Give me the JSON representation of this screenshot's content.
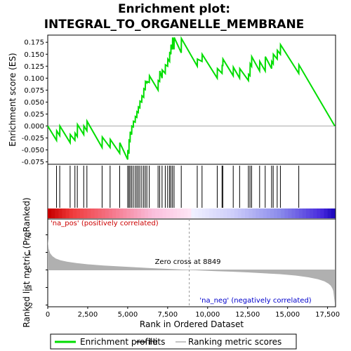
{
  "title_line1": "Enrichment plot:",
  "title_line2": "INTEGRAL_TO_ORGANELLE_MEMBRANE",
  "colors": {
    "enrichment_line": "#00dd00",
    "hits": "#000000",
    "metric_fill": "#b0b0b0",
    "pos_label": "#cc0000",
    "neg_label": "#0000cc",
    "zero_cross_line": "#999999"
  },
  "chart_data": [
    {
      "type": "line",
      "panel": "enrichment",
      "ylabel": "Enrichment score (ES)",
      "xlim": [
        0,
        18000
      ],
      "ylim": [
        -0.08,
        0.19
      ],
      "yticks": [
        -0.075,
        -0.05,
        -0.025,
        0.0,
        0.025,
        0.05,
        0.075,
        0.1,
        0.125,
        0.15,
        0.175
      ],
      "ytick_labels": [
        "-0.075",
        "-0.050",
        "-0.025",
        "0.000",
        "0.025",
        "0.050",
        "0.075",
        "0.100",
        "0.125",
        "0.150",
        "0.175"
      ],
      "series": [
        {
          "name": "Enrichment profile",
          "x": [
            0,
            550,
            560,
            750,
            760,
            1400,
            1410,
            1700,
            1710,
            1850,
            1860,
            2250,
            2260,
            2450,
            2460,
            3400,
            3410,
            3900,
            3910,
            4500,
            4510,
            5000,
            5010,
            5080,
            5090,
            5150,
            5160,
            5250,
            5260,
            5350,
            5360,
            5470,
            5480,
            5570,
            5580,
            5660,
            5670,
            5760,
            5770,
            5880,
            5890,
            6000,
            6010,
            6100,
            6110,
            6200,
            6210,
            6350,
            6360,
            6900,
            6910,
            7000,
            7010,
            7150,
            7160,
            7350,
            7360,
            7500,
            7510,
            7620,
            7630,
            7700,
            7710,
            7800,
            7810,
            7900,
            7910,
            8350,
            8360,
            9350,
            9360,
            9650,
            9660,
            10600,
            10610,
            10900,
            10910,
            10950,
            10960,
            11600,
            11610,
            12000,
            12010,
            12550,
            12560,
            12650,
            12660,
            12750,
            12760,
            13250,
            13260,
            13600,
            13610,
            14000,
            14010,
            14100,
            14110,
            14350,
            14360,
            14550,
            14560,
            15700,
            15710,
            17950
          ],
          "y": [
            0.0,
            -0.03,
            -0.01,
            -0.02,
            0.0,
            -0.035,
            -0.018,
            -0.03,
            -0.015,
            -0.022,
            0.003,
            -0.018,
            0.0,
            -0.01,
            0.01,
            -0.045,
            -0.023,
            -0.045,
            -0.028,
            -0.057,
            -0.035,
            -0.07,
            -0.05,
            -0.058,
            -0.03,
            -0.032,
            -0.012,
            -0.018,
            0.0,
            -0.002,
            0.01,
            0.008,
            0.02,
            0.018,
            0.03,
            0.028,
            0.04,
            0.038,
            0.052,
            0.05,
            0.063,
            0.06,
            0.078,
            0.076,
            0.093,
            0.09,
            0.093,
            0.091,
            0.105,
            0.075,
            0.095,
            0.093,
            0.115,
            0.1,
            0.117,
            0.11,
            0.128,
            0.125,
            0.14,
            0.135,
            0.155,
            0.15,
            0.17,
            0.16,
            0.185,
            0.16,
            0.185,
            0.153,
            0.183,
            0.125,
            0.14,
            0.135,
            0.15,
            0.1,
            0.12,
            0.11,
            0.128,
            0.125,
            0.14,
            0.105,
            0.123,
            0.1,
            0.12,
            0.095,
            0.108,
            0.105,
            0.13,
            0.125,
            0.145,
            0.115,
            0.135,
            0.115,
            0.145,
            0.12,
            0.135,
            0.13,
            0.15,
            0.14,
            0.158,
            0.15,
            0.17,
            0.11,
            0.128,
            0.0
          ]
        }
      ]
    },
    {
      "type": "scatter",
      "panel": "hits",
      "series": [
        {
          "name": "Hits",
          "x": [
            550,
            750,
            1400,
            1700,
            1850,
            2250,
            2450,
            3400,
            3900,
            4500,
            5000,
            5080,
            5150,
            5250,
            5350,
            5470,
            5570,
            5660,
            5760,
            5880,
            6000,
            6100,
            6200,
            6350,
            6900,
            7000,
            7150,
            7350,
            7500,
            7620,
            7700,
            7800,
            7900,
            8350,
            9350,
            9650,
            10600,
            10900,
            10950,
            11600,
            12000,
            12550,
            12650,
            12750,
            13250,
            13600,
            14000,
            14100,
            14350,
            14550,
            15700
          ]
        }
      ]
    },
    {
      "type": "area",
      "panel": "metric",
      "ylabel": "Ranked list metric (PreRanked)",
      "xlabel": "Rank in Ordered Dataset",
      "xlim": [
        0,
        18000
      ],
      "ylim": [
        -2.1,
        2.9
      ],
      "xticks": [
        0,
        2500,
        5000,
        7500,
        10000,
        12500,
        15000,
        17500
      ],
      "xtick_labels": [
        "0",
        "2,500",
        "5,000",
        "7,500",
        "10,000",
        "12,500",
        "15,000",
        "17,500"
      ],
      "yticks": [
        -2,
        -1,
        0,
        1,
        2
      ],
      "ytick_labels": [
        "-2",
        "-1",
        "0",
        "1",
        "2"
      ],
      "zero_cross": 8849,
      "zero_cross_label": "Zero cross at 8849",
      "pos_label": "'na_pos' (positively correlated)",
      "neg_label": "'na_neg' (negatively correlated)",
      "series": [
        {
          "name": "Ranking metric scores",
          "x": [
            0,
            20,
            60,
            150,
            300,
            500,
            800,
            1200,
            1800,
            2500,
            3500,
            4500,
            5500,
            6500,
            7500,
            8400,
            8849,
            9500,
            10500,
            11500,
            12500,
            13500,
            14500,
            15500,
            16300,
            16900,
            17300,
            17550,
            17700,
            17800,
            17860,
            17900,
            17950
          ],
          "y": [
            1.8,
            1.5,
            1.2,
            0.95,
            0.78,
            0.65,
            0.55,
            0.47,
            0.39,
            0.32,
            0.25,
            0.2,
            0.15,
            0.1,
            0.06,
            0.02,
            0.0,
            -0.03,
            -0.07,
            -0.1,
            -0.14,
            -0.19,
            -0.24,
            -0.32,
            -0.42,
            -0.53,
            -0.65,
            -0.78,
            -0.9,
            -1.05,
            -1.2,
            -1.5,
            -1.9
          ]
        }
      ]
    }
  ],
  "legend": {
    "items": [
      {
        "label": "Enrichment profile",
        "swatch": "line",
        "color": "#00dd00"
      },
      {
        "label": "Hits",
        "swatch": "line",
        "color": "#000000"
      },
      {
        "label": "Ranking metric scores",
        "swatch": "line",
        "color": "#b0b0b0"
      }
    ]
  }
}
